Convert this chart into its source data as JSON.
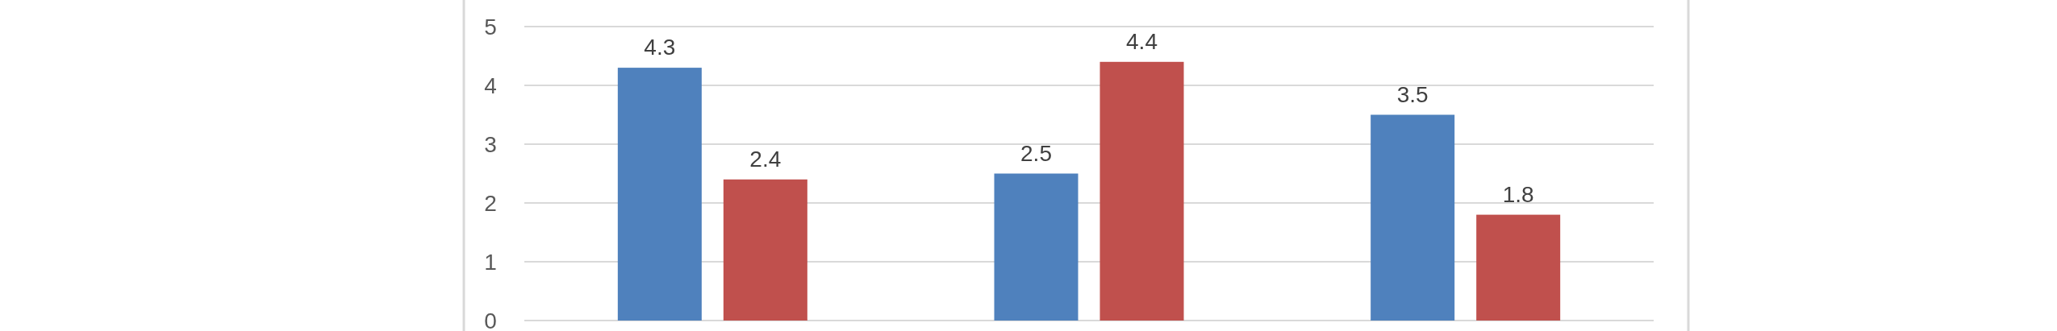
{
  "chart_data": {
    "type": "bar",
    "categories": [
      null,
      null,
      null
    ],
    "series": [
      {
        "color": "#4f81bd",
        "values": [
          4.3,
          2.5,
          3.5
        ]
      },
      {
        "color": "#c0504d",
        "values": [
          2.4,
          4.4,
          1.8
        ]
      }
    ],
    "ylim": [
      0,
      5
    ],
    "yticks": [
      0,
      1,
      2,
      3,
      4,
      5
    ],
    "grid": "y",
    "data_labels": true,
    "tick_labels": "y"
  }
}
